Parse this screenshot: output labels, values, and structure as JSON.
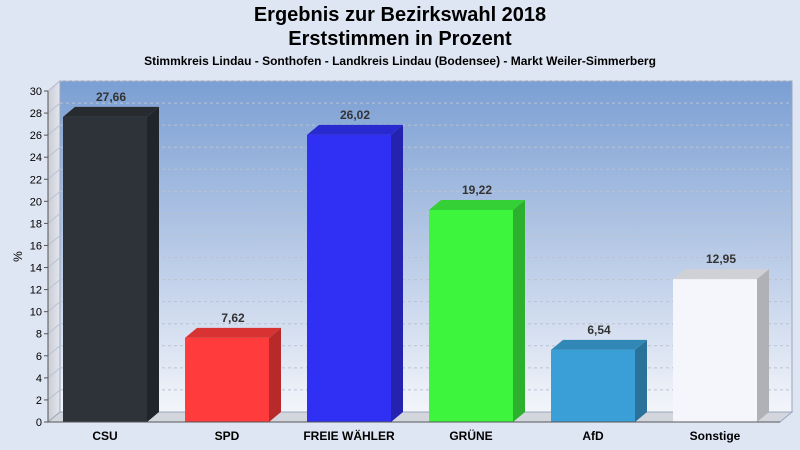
{
  "header": {
    "title_line1": "Ergebnis zur Bezirkswahl 2018",
    "title_line2": "Erststimmen in Prozent",
    "subtitle": "Stimmkreis Lindau - Sonthofen - Landkreis Lindau (Bodensee) - Markt Weiler-Simmerberg"
  },
  "chart_data": {
    "type": "bar",
    "title": "Ergebnis zur Bezirkswahl 2018 Erststimmen in Prozent",
    "subtitle": "Stimmkreis Lindau - Sonthofen - Landkreis Lindau (Bodensee) - Markt Weiler-Simmerberg",
    "xlabel": "",
    "ylabel": "%",
    "ylim": [
      0,
      30
    ],
    "yticks": [
      0,
      2,
      4,
      6,
      8,
      10,
      12,
      14,
      16,
      18,
      20,
      22,
      24,
      26,
      28,
      30
    ],
    "grid": true,
    "categories": [
      "CSU",
      "SPD",
      "FREIE WÄHLER",
      "GRÜNE",
      "AfD",
      "Sonstige"
    ],
    "values": [
      27.66,
      7.62,
      26.02,
      19.22,
      6.54,
      12.95
    ],
    "value_labels": [
      "27,66",
      "7,62",
      "26,02",
      "19,22",
      "6,54",
      "12,95"
    ],
    "colors": [
      "#2e3239",
      "#ff3b3b",
      "#3030f5",
      "#3ef53e",
      "#3a9fd6",
      "#f4f6fb"
    ]
  }
}
